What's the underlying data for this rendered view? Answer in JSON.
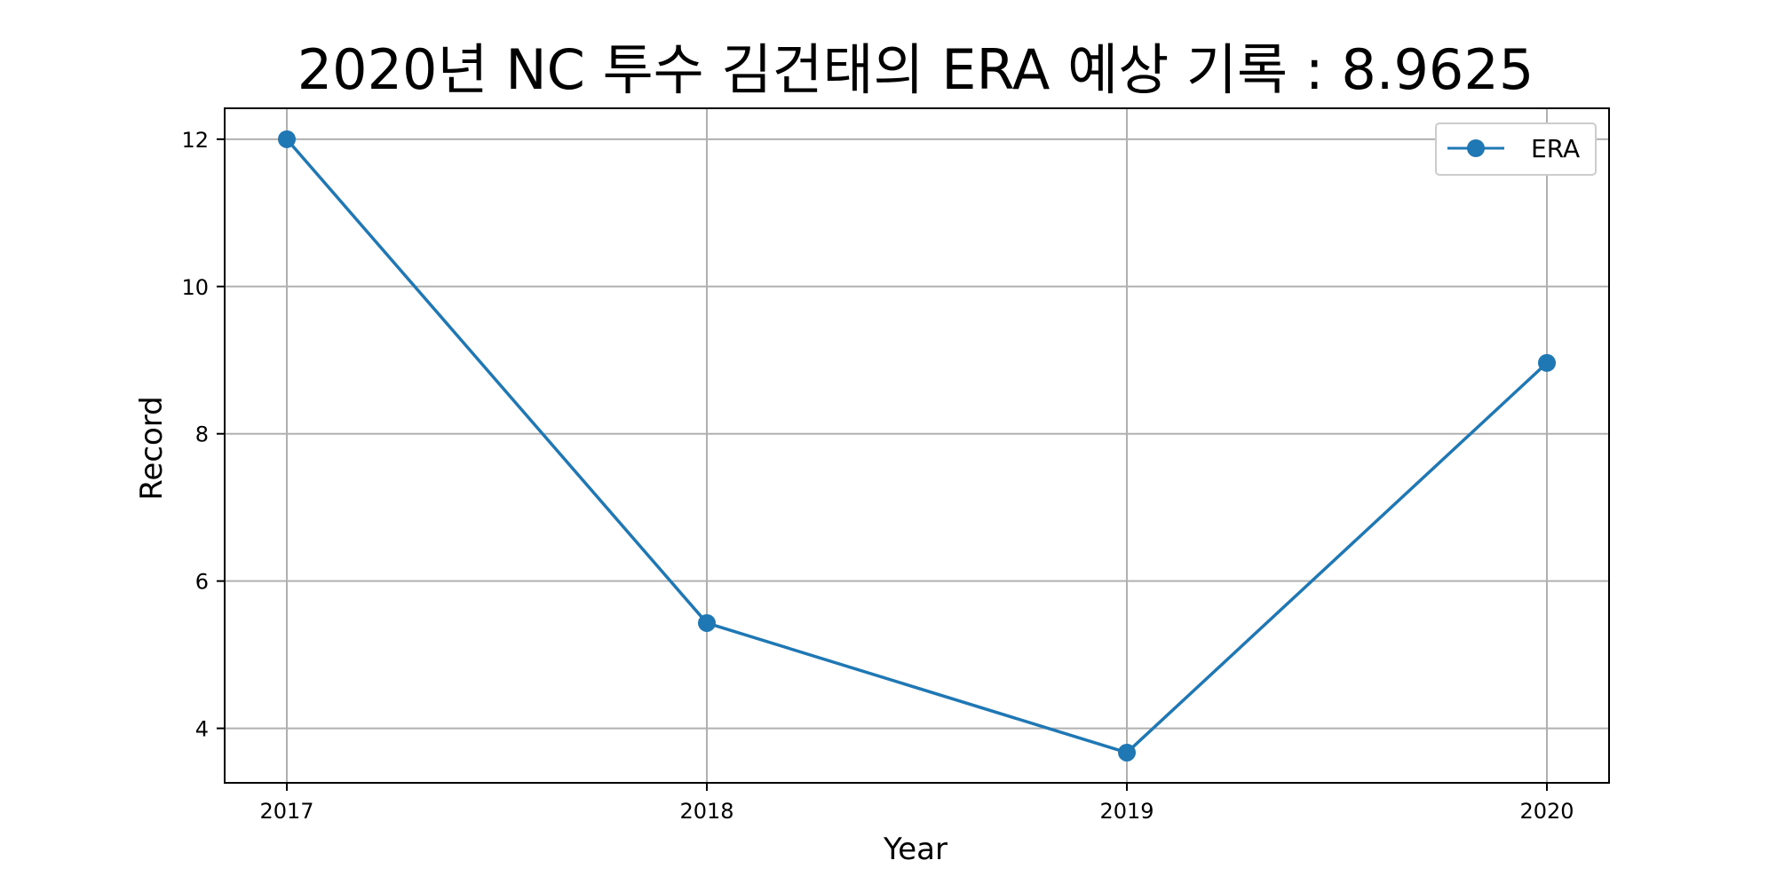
{
  "chart_data": {
    "type": "line",
    "title": "2020년 NC 투수 김건태의 ERA 예상 기록 : 8.9625",
    "xlabel": "Year",
    "ylabel": "Record",
    "x": [
      "2017",
      "2018",
      "2019",
      "2020"
    ],
    "series": [
      {
        "name": "ERA",
        "values": [
          12.0,
          5.43,
          3.67,
          8.9625
        ],
        "color": "#1f77b4",
        "marker": "circle"
      }
    ],
    "ylim": [
      3.26,
      12.42
    ],
    "yticks": [
      4,
      6,
      8,
      10,
      12
    ],
    "grid": true,
    "legend": {
      "position": "top-right"
    }
  }
}
